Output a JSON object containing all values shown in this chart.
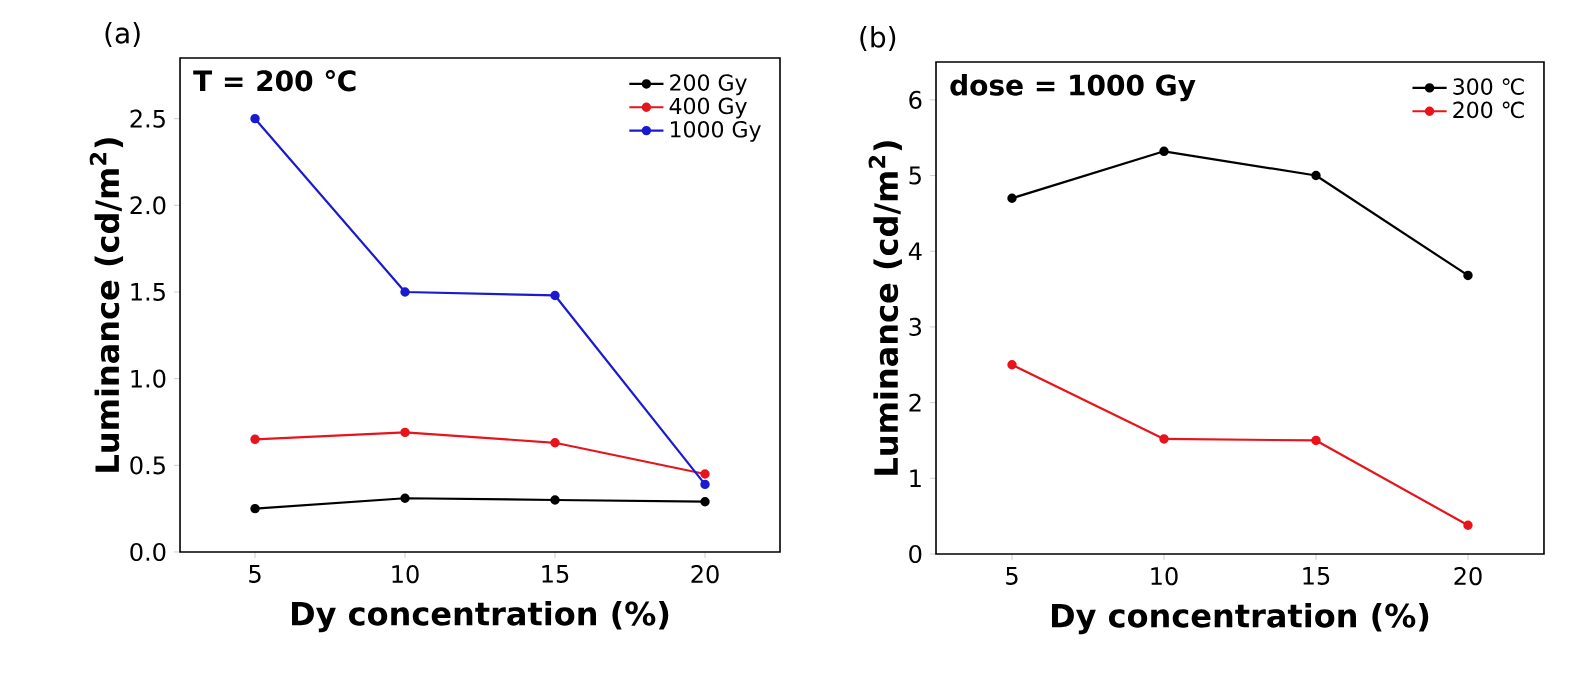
{
  "chart_data": [
    {
      "type": "line",
      "title": "(a)",
      "xlabel": "Dy concentration (%)",
      "ylabel": "Luminance (cd/m$^{2}$)",
      "annotations": [
        "T = 200 ℃"
      ],
      "x": [
        5,
        10,
        15,
        20
      ],
      "xlim": [
        2.5,
        22.5
      ],
      "xticks": [
        5,
        10,
        15,
        20
      ],
      "ylim": [
        0,
        2.85
      ],
      "yticks": [
        {
          "value": 0,
          "label": "0.0"
        },
        0.5,
        {
          "value": 1,
          "label": "1.0"
        },
        1.5,
        {
          "value": 2,
          "label": "2.0"
        },
        2.5
      ],
      "legend": "top right",
      "marker": "circle",
      "line_style": "solid",
      "grid": false,
      "series": [
        {
          "name": "200 Gy",
          "color": "#000000",
          "values": [
            0.25,
            0.31,
            0.3,
            0.29
          ]
        },
        {
          "name": "400 Gy",
          "color": "#e8141c",
          "values": [
            0.65,
            0.69,
            0.63,
            0.45
          ]
        },
        {
          "name": "1000 Gy",
          "color": "#1a1ad0",
          "values": [
            2.5,
            1.5,
            1.48,
            0.39
          ]
        }
      ]
    },
    {
      "type": "line",
      "title": "(b)",
      "xlabel": "Dy concentration (%)",
      "ylabel": "Luminance (cd/m$^{2}$)",
      "annotations": [
        "dose = 1000 Gy"
      ],
      "x": [
        5,
        10,
        15,
        20
      ],
      "xlim": [
        2.5,
        22.5
      ],
      "xticks": [
        5,
        10,
        15,
        20
      ],
      "ylim": [
        0,
        6.5
      ],
      "yticks": [
        0,
        1,
        2,
        3,
        4,
        5,
        6
      ],
      "legend": "top right",
      "marker": "circle",
      "line_style": "solid",
      "grid": false,
      "series": [
        {
          "name": "300 ℃",
          "color": "#000000",
          "values": [
            4.7,
            5.32,
            5.0,
            3.68
          ]
        },
        {
          "name": "200 ℃",
          "color": "#e8141c",
          "values": [
            2.5,
            1.52,
            1.5,
            0.38
          ]
        }
      ]
    }
  ]
}
